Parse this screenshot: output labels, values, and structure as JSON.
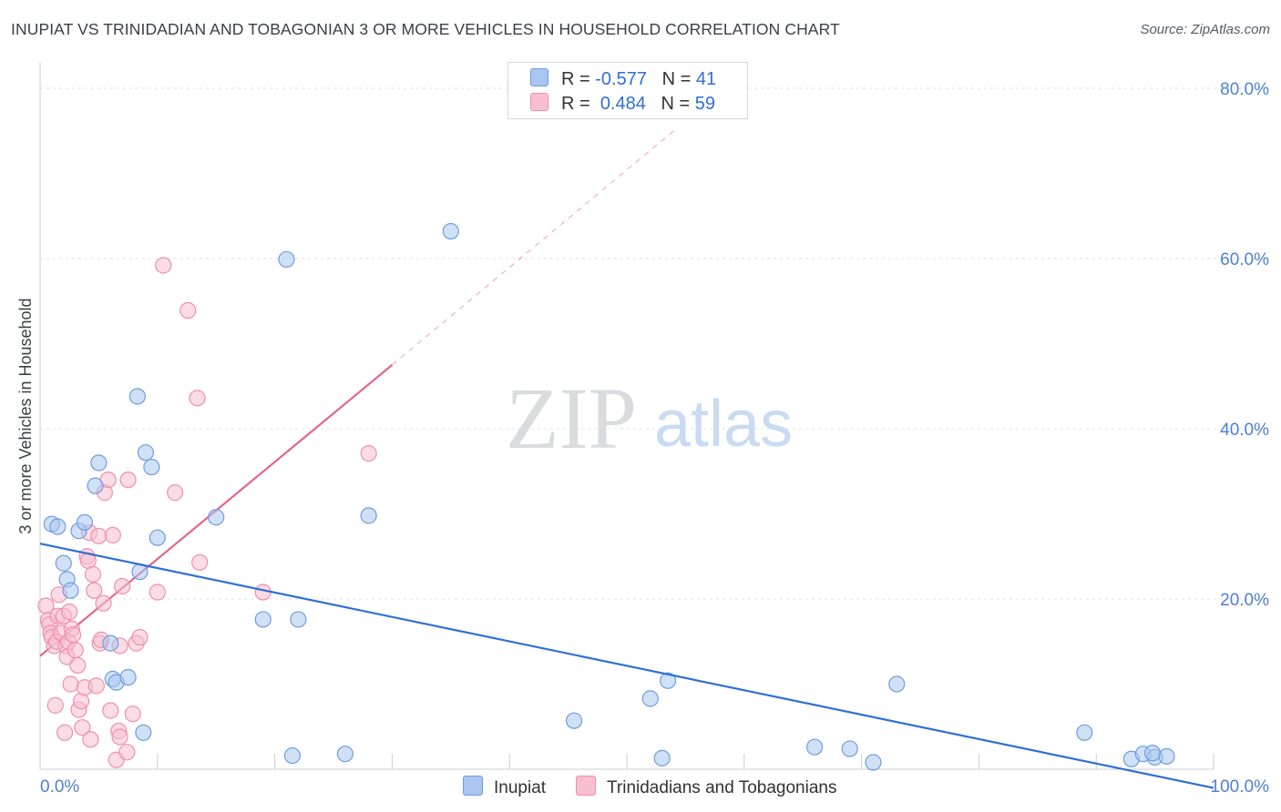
{
  "title": "INUPIAT VS TRINIDADIAN AND TOBAGONIAN 3 OR MORE VEHICLES IN HOUSEHOLD CORRELATION CHART",
  "source": "Source: ZipAtlas.com",
  "watermark": {
    "zip": "ZIP",
    "atlas": "atlas"
  },
  "legend": {
    "rows": [
      {
        "r_label": "R =",
        "r_value": "-0.577",
        "n_label": "N =",
        "n_value": "41",
        "color": "#a9c6f0",
        "border": "#6e9de0"
      },
      {
        "r_label": "R =",
        "r_value": "0.484",
        "n_label": "N =",
        "n_value": "59",
        "color": "#f7bfd0",
        "border": "#ee8fae"
      }
    ]
  },
  "bottom_legend": [
    {
      "label": "Inupiat",
      "color": "#a9c6f0",
      "border": "#6e9de0"
    },
    {
      "label": "Trinidadians and Tobagonians",
      "color": "#f7bfd0",
      "border": "#ee8fae"
    }
  ],
  "chart_data": {
    "type": "scatter",
    "title": "INUPIAT VS TRINIDADIAN AND TOBAGONIAN 3 OR MORE VEHICLES IN HOUSEHOLD CORRELATION CHART",
    "xlabel": "",
    "ylabel": "3 or more Vehicles in Household",
    "xlim": [
      0,
      100
    ],
    "ylim": [
      0,
      80
    ],
    "x_tick_labels": [
      "0.0%",
      "100.0%"
    ],
    "y_ticks": [
      20,
      40,
      60,
      80
    ],
    "y_tick_labels": [
      "20.0%",
      "40.0%",
      "60.0%",
      "80.0%"
    ],
    "grid": true,
    "series": [
      {
        "name": "Inupiat",
        "color": "#6e9de0",
        "fill": "#a9c6f0",
        "trend": {
          "x": [
            0,
            100
          ],
          "y": [
            26.5,
            -2.2
          ],
          "style": "solid",
          "color": "#2e6fd6"
        },
        "points": [
          [
            1,
            28.8
          ],
          [
            1.5,
            28.5
          ],
          [
            2,
            24.2
          ],
          [
            2.3,
            22.3
          ],
          [
            2.6,
            21
          ],
          [
            3.3,
            28
          ],
          [
            3.8,
            29
          ],
          [
            4.7,
            33.3
          ],
          [
            5,
            36
          ],
          [
            6,
            14.8
          ],
          [
            6.2,
            10.6
          ],
          [
            6.5,
            10.2
          ],
          [
            7.5,
            10.8
          ],
          [
            8.3,
            43.8
          ],
          [
            8.5,
            23.2
          ],
          [
            9,
            37.2
          ],
          [
            8.8,
            4.3
          ],
          [
            9.5,
            35.5
          ],
          [
            10,
            27.2
          ],
          [
            15,
            29.6
          ],
          [
            19,
            17.6
          ],
          [
            21,
            59.9
          ],
          [
            21.5,
            1.6
          ],
          [
            22,
            17.6
          ],
          [
            26,
            1.8
          ],
          [
            28,
            29.8
          ],
          [
            35,
            63.2
          ],
          [
            45.5,
            5.7
          ],
          [
            52,
            8.3
          ],
          [
            53,
            1.3
          ],
          [
            53.5,
            10.4
          ],
          [
            66,
            2.6
          ],
          [
            69,
            2.4
          ],
          [
            71,
            0.8
          ],
          [
            73,
            10
          ],
          [
            89,
            4.3
          ],
          [
            93,
            1.2
          ],
          [
            94,
            1.8
          ],
          [
            95,
            1.4
          ],
          [
            94.8,
            1.9
          ],
          [
            96,
            1.5
          ]
        ]
      },
      {
        "name": "Trinidadians and Tobagonians",
        "color": "#ee8fae",
        "fill": "#f7bfd0",
        "trend": {
          "x": [
            0,
            30
          ],
          "y": [
            13.3,
            47.5
          ],
          "style": "solid",
          "color": "#e4648d",
          "extension": {
            "x": [
              30,
              54
            ],
            "y": [
              47.5,
              75
            ],
            "style": "dashed"
          }
        },
        "points": [
          [
            0.5,
            19.2
          ],
          [
            0.7,
            17.5
          ],
          [
            0.8,
            17
          ],
          [
            0.9,
            16
          ],
          [
            1,
            15.5
          ],
          [
            1.2,
            14.5
          ],
          [
            1.4,
            15
          ],
          [
            1.5,
            18
          ],
          [
            1.6,
            20.5
          ],
          [
            1.8,
            16
          ],
          [
            2,
            18
          ],
          [
            2.1,
            4.3
          ],
          [
            2.2,
            14.5
          ],
          [
            2.3,
            13.2
          ],
          [
            2.4,
            15
          ],
          [
            2.5,
            18.5
          ],
          [
            2.6,
            10
          ],
          [
            2.7,
            16.5
          ],
          [
            2.8,
            15.8
          ],
          [
            3,
            14
          ],
          [
            3.2,
            12.2
          ],
          [
            3.3,
            7
          ],
          [
            3.5,
            8
          ],
          [
            3.6,
            4.9
          ],
          [
            3.8,
            9.6
          ],
          [
            4,
            25
          ],
          [
            4.1,
            24.5
          ],
          [
            4.2,
            27.8
          ],
          [
            4.3,
            3.5
          ],
          [
            4.5,
            22.9
          ],
          [
            4.6,
            21
          ],
          [
            4.8,
            9.8
          ],
          [
            5,
            27.4
          ],
          [
            5.1,
            14.8
          ],
          [
            5.2,
            15.2
          ],
          [
            5.4,
            19.5
          ],
          [
            5.5,
            32.5
          ],
          [
            5.8,
            34
          ],
          [
            6,
            6.9
          ],
          [
            6.2,
            27.5
          ],
          [
            6.5,
            1.1
          ],
          [
            6.7,
            4.5
          ],
          [
            6.8,
            14.5
          ],
          [
            7,
            21.5
          ],
          [
            7.4,
            2
          ],
          [
            7.5,
            34
          ],
          [
            7.9,
            6.5
          ],
          [
            8.2,
            14.8
          ],
          [
            8.5,
            15.5
          ],
          [
            10,
            20.8
          ],
          [
            10.5,
            59.2
          ],
          [
            11.5,
            32.5
          ],
          [
            12.6,
            53.9
          ],
          [
            13.4,
            43.6
          ],
          [
            13.6,
            24.3
          ],
          [
            19,
            20.8
          ],
          [
            28,
            37.1
          ],
          [
            6.8,
            3.8
          ],
          [
            1.3,
            7.5
          ]
        ]
      }
    ]
  }
}
